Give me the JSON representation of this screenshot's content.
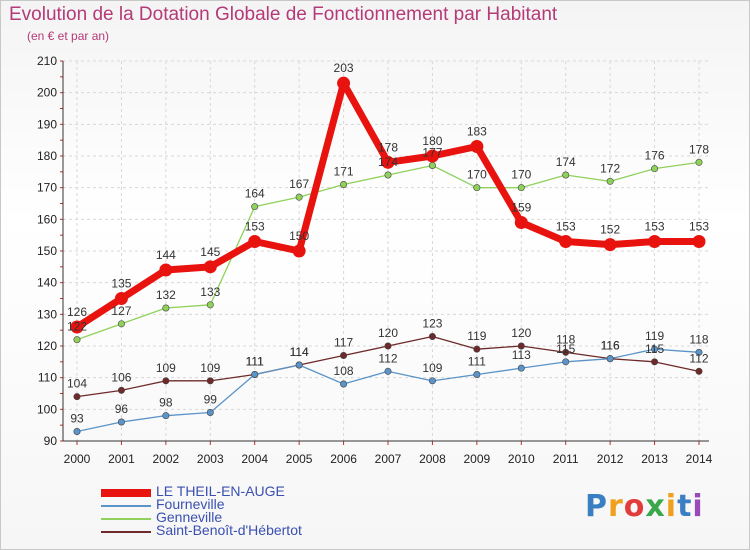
{
  "title": "Evolution de la Dotation Globale de Fonctionnement par Habitant",
  "subtitle": "(en € et par an)",
  "logo": {
    "text": "Proxiti",
    "letter_colors": [
      "#3a7fc4",
      "#f0a020",
      "#e23b3b",
      "#3aa84a",
      "#f0a020",
      "#3a7fc4",
      "#9a4ab8"
    ]
  },
  "chart_data": {
    "type": "line",
    "x": [
      2000,
      2001,
      2002,
      2003,
      2004,
      2005,
      2006,
      2007,
      2008,
      2009,
      2010,
      2011,
      2012,
      2013,
      2014
    ],
    "ylim": [
      90,
      210
    ],
    "yticks": [
      90,
      100,
      110,
      120,
      130,
      140,
      150,
      160,
      170,
      180,
      190,
      200,
      210
    ],
    "legend_position": "bottom-left",
    "series": [
      {
        "name": "LE THEIL-EN-AUGE",
        "color": "#e8130f",
        "values": [
          126,
          135,
          144,
          145,
          153,
          150,
          203,
          178,
          180,
          183,
          159,
          153,
          152,
          153,
          153
        ]
      },
      {
        "name": "Fourneville",
        "color": "#5a94c8",
        "values": [
          93,
          96,
          98,
          99,
          111,
          114,
          108,
          112,
          109,
          111,
          113,
          115,
          116,
          119,
          118
        ]
      },
      {
        "name": "Genneville",
        "color": "#8fd15a",
        "values": [
          122,
          127,
          132,
          133,
          164,
          167,
          171,
          174,
          177,
          170,
          170,
          174,
          172,
          176,
          178
        ]
      },
      {
        "name": "Saint-Benoît-d'Hébertot",
        "color": "#6e2a2a",
        "values": [
          104,
          106,
          109,
          109,
          111,
          114,
          117,
          120,
          123,
          119,
          120,
          118,
          116,
          115,
          112
        ]
      }
    ]
  }
}
